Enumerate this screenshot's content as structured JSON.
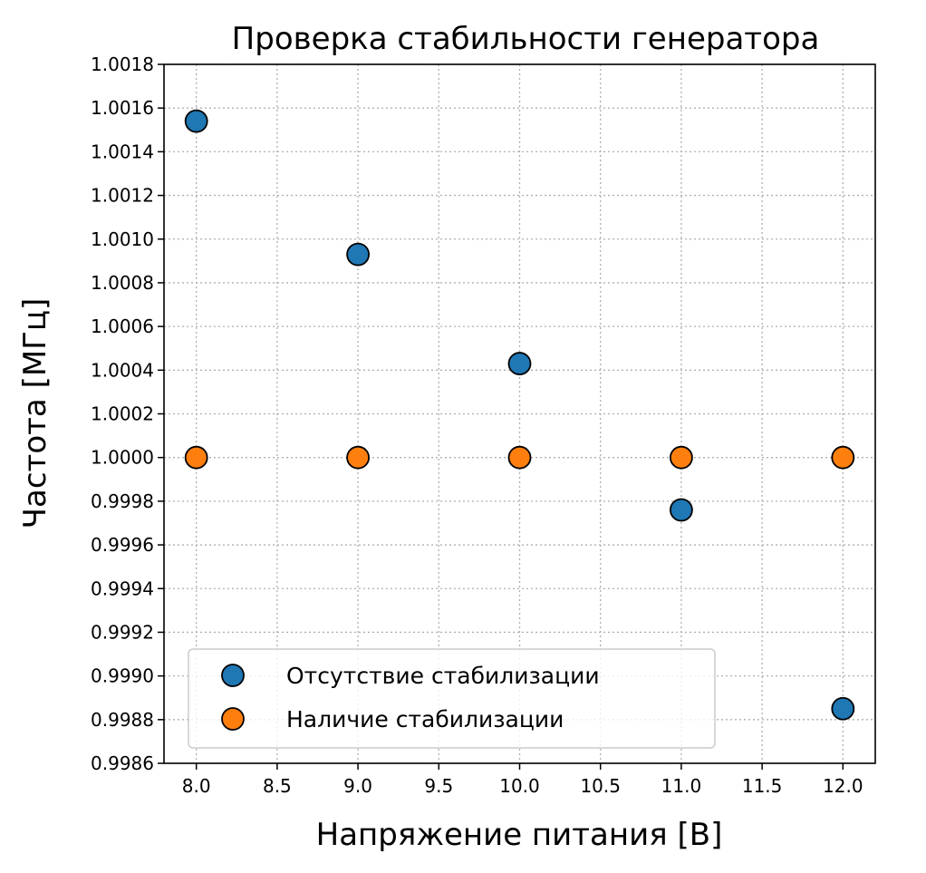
{
  "chart_data": {
    "type": "scatter",
    "title": "Проверка стабильности генератора",
    "xlabel": "Напряжение питания [В]",
    "ylabel": "Частота [МГц]",
    "xlim": [
      7.8,
      12.2
    ],
    "ylim": [
      0.9986,
      1.0018
    ],
    "x_ticks": [
      "8.0",
      "8.5",
      "9.0",
      "9.5",
      "10.0",
      "10.5",
      "11.0",
      "11.5",
      "12.0"
    ],
    "x_tick_values": [
      8.0,
      8.5,
      9.0,
      9.5,
      10.0,
      10.5,
      11.0,
      11.5,
      12.0
    ],
    "y_ticks": [
      "0.9986",
      "0.9988",
      "0.9990",
      "0.9992",
      "0.9994",
      "0.9996",
      "0.9998",
      "1.0000",
      "1.0002",
      "1.0004",
      "1.0006",
      "1.0008",
      "1.0010",
      "1.0012",
      "1.0014",
      "1.0016",
      "1.0018"
    ],
    "y_tick_values": [
      0.9986,
      0.9988,
      0.999,
      0.9992,
      0.9994,
      0.9996,
      0.9998,
      1.0,
      1.0002,
      1.0004,
      1.0006,
      1.0008,
      1.001,
      1.0012,
      1.0014,
      1.0016,
      1.0018
    ],
    "grid": true,
    "legend_position": "lower-left",
    "series": [
      {
        "name": "Отсутствие стабилизации",
        "color": "#1f77b4",
        "x": [
          8.0,
          9.0,
          10.0,
          11.0,
          12.0
        ],
        "y": [
          1.00154,
          1.00093,
          1.00043,
          0.99976,
          0.99885
        ]
      },
      {
        "name": "Наличие стабилизации",
        "color": "#ff7f0e",
        "x": [
          8.0,
          9.0,
          10.0,
          11.0,
          12.0
        ],
        "y": [
          1.0,
          1.0,
          1.0,
          1.0,
          1.0
        ]
      }
    ]
  }
}
